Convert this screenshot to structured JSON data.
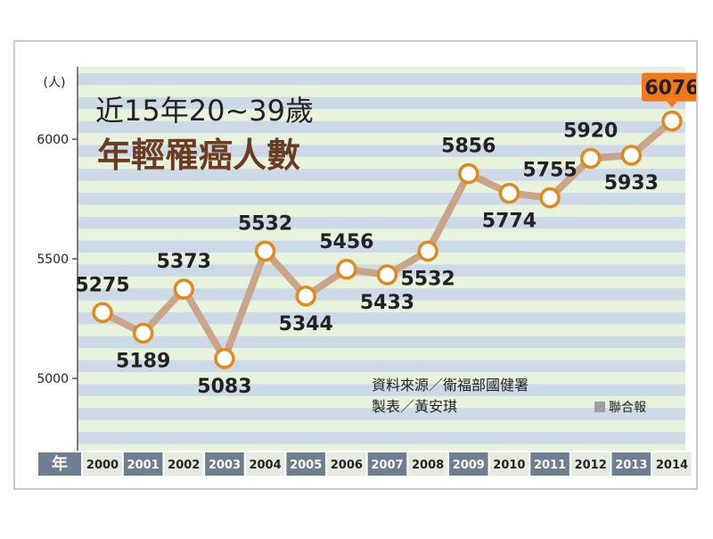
{
  "chart_data": {
    "type": "line",
    "title": "年輕罹癌人數",
    "subtitle": "近15年20~39歲",
    "ylabel": "人",
    "xlabel": "年",
    "ylim": [
      4700,
      6300
    ],
    "yticks": [
      5000,
      5500,
      6000
    ],
    "categories": [
      "2000",
      "2001",
      "2002",
      "2003",
      "2004",
      "2005",
      "2006",
      "2007",
      "2008",
      "2009",
      "2010",
      "2011",
      "2012",
      "2013",
      "2014"
    ],
    "values": [
      5275,
      5189,
      5373,
      5083,
      5532,
      5344,
      5456,
      5433,
      5532,
      5856,
      5774,
      5755,
      5920,
      5933,
      6076
    ],
    "highlight_index": 14,
    "colors": {
      "line": "#c9a58a",
      "marker_edge": "#e08a1e",
      "stripe_light": "#e7f3dd",
      "stripe_blue": "#cdd9e6",
      "highlight": "#ef7a1c",
      "tick_dark": "#6e7f91",
      "tick_light": "#e6ebe0"
    },
    "grid": true
  },
  "source_line": "資料來源／衛福部國健署",
  "maker_line": "製表／黃安琪",
  "brand": "聯合報"
}
